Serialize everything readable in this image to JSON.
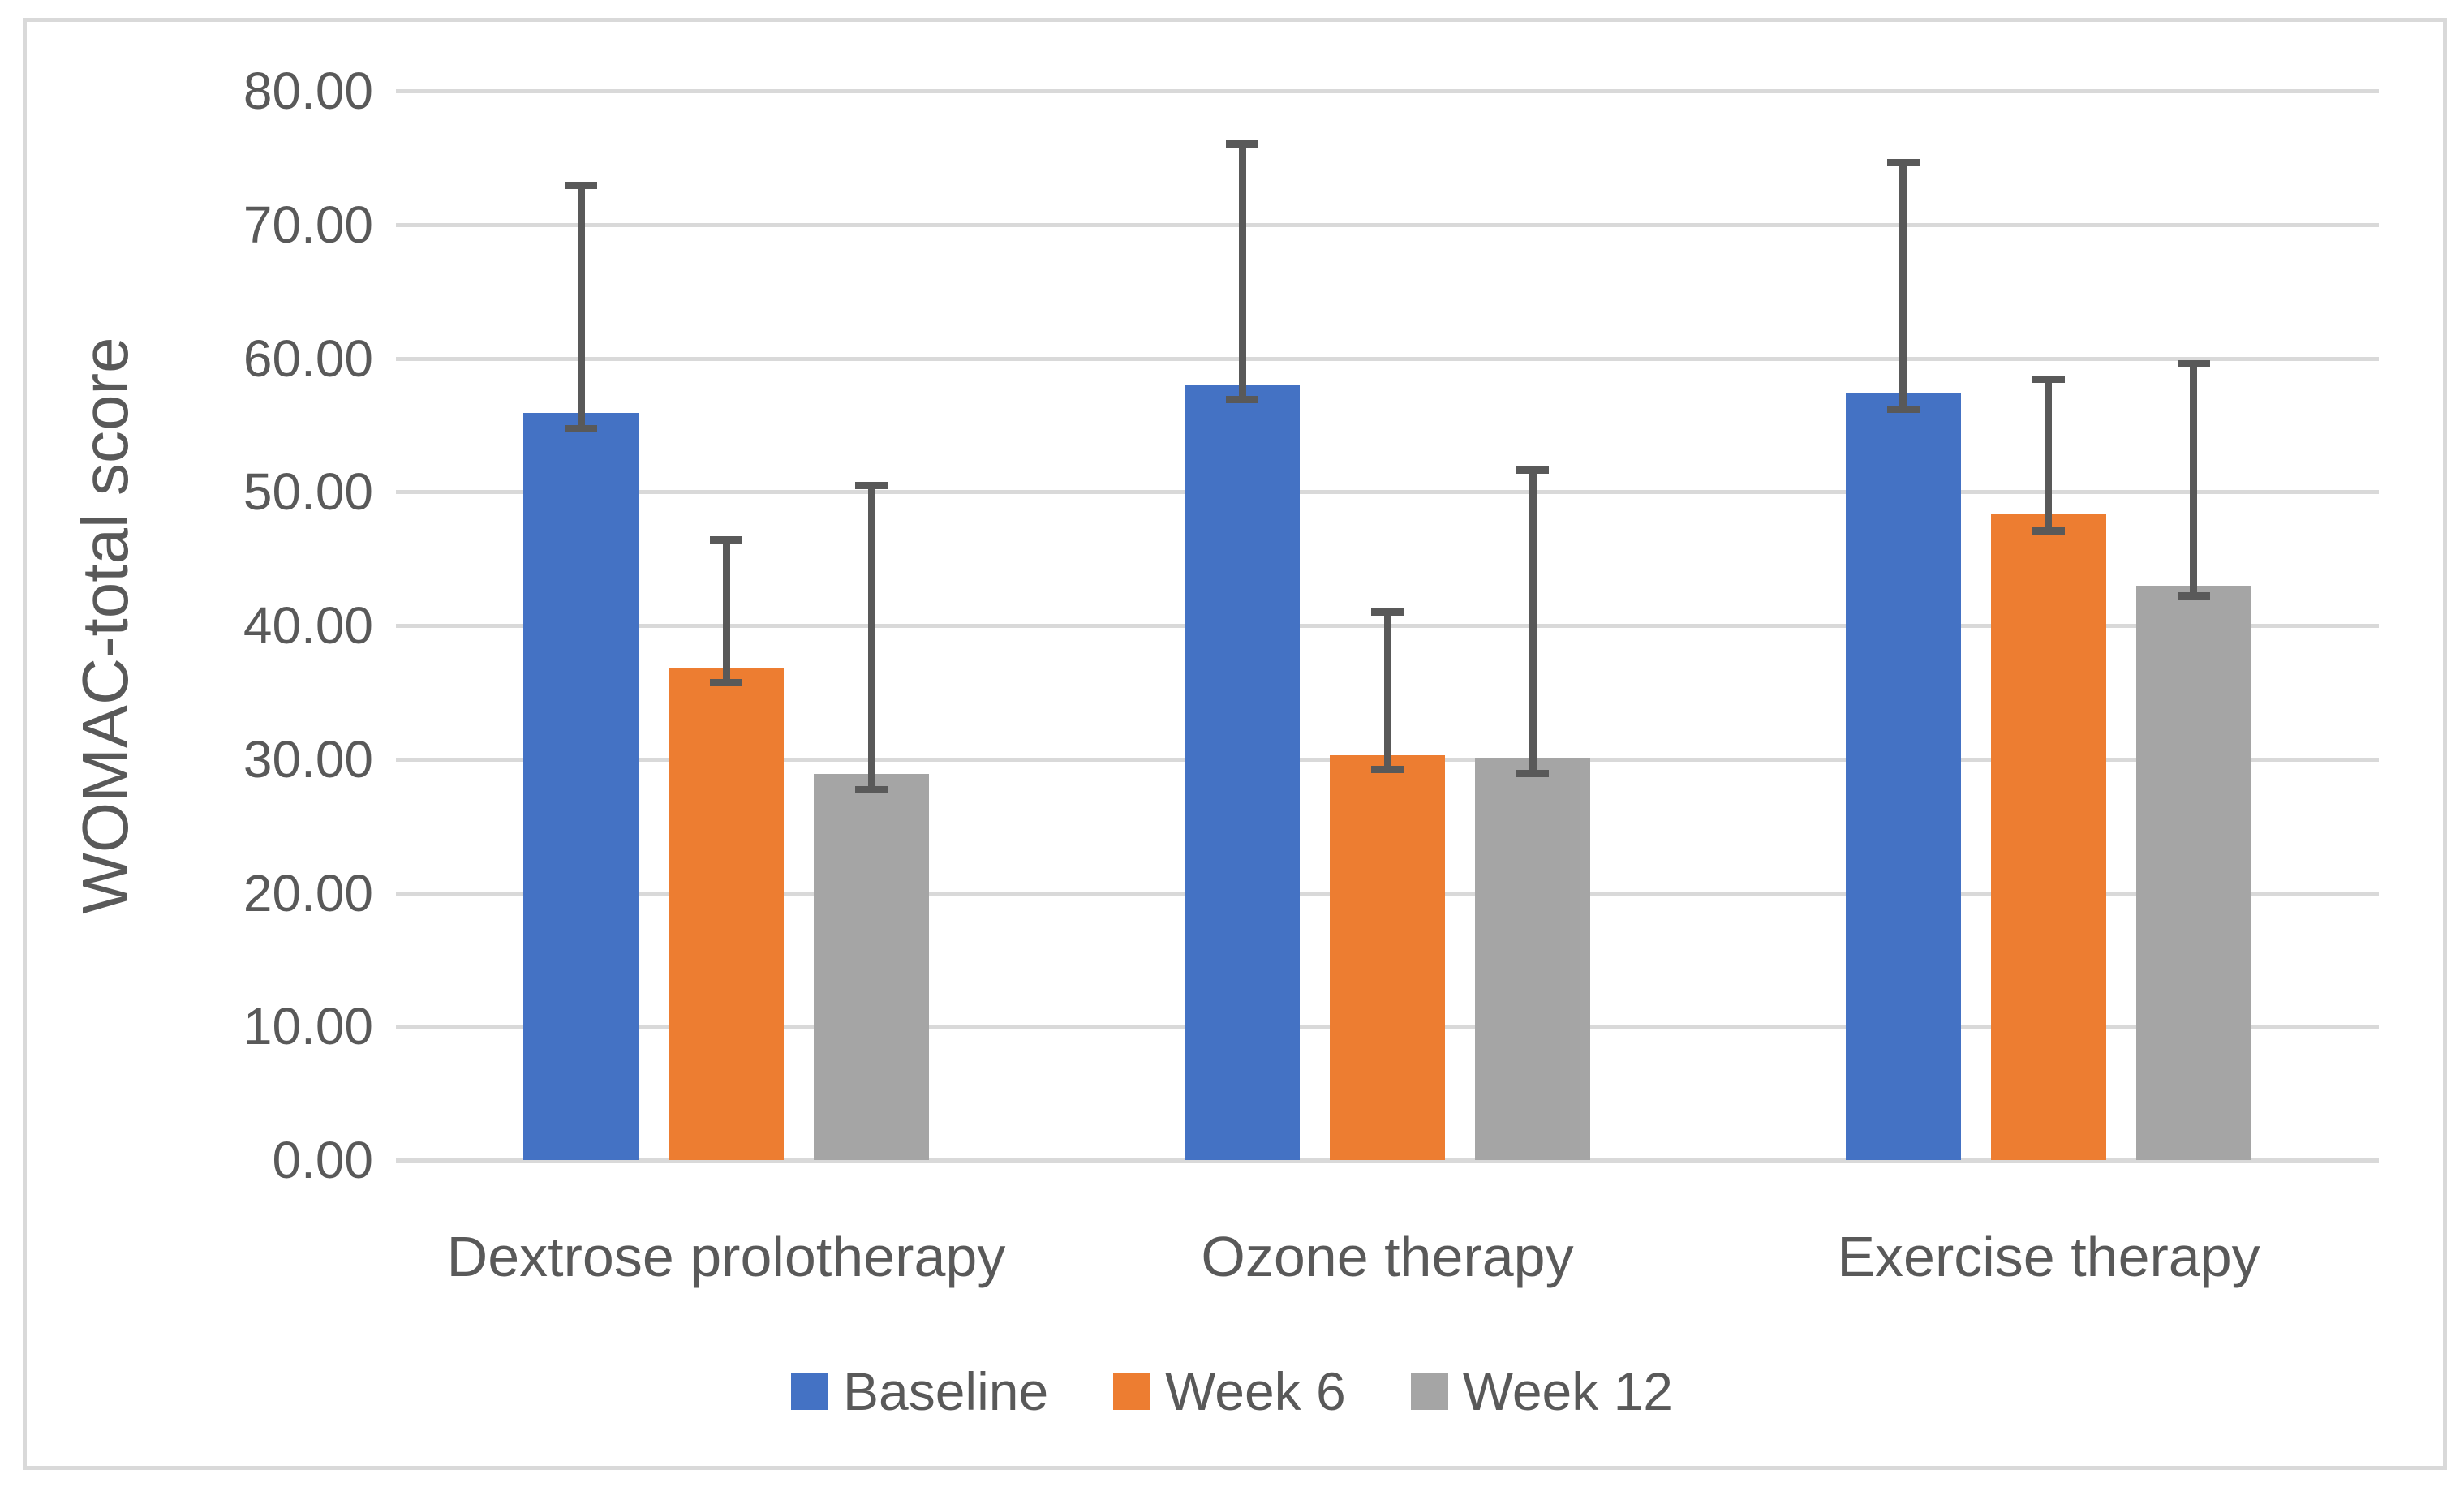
{
  "styles": {
    "axis_text_color": "#595959",
    "gridline_color": "#D9D9D9",
    "frame_color": "#D9D9D9",
    "error_bar_color": "#595959",
    "background": "#FFFFFF"
  },
  "chart_data": {
    "type": "bar",
    "title": "",
    "xlabel": "",
    "ylabel": "WOMAC-total score",
    "ylim": [
      0,
      80
    ],
    "ytick_step": 10,
    "ytick_decimals": 2,
    "ytick_labels": [
      "0.00",
      "10.00",
      "20.00",
      "30.00",
      "40.00",
      "50.00",
      "60.00",
      "70.00",
      "80.00"
    ],
    "grid": true,
    "legend_position": "bottom",
    "categories": [
      "Dextrose prolotherapy",
      "Ozone therapy",
      "Exercise therapy"
    ],
    "series": [
      {
        "name": "Baseline",
        "color": "#4472C4",
        "values": [
          55.9,
          58.0,
          57.4
        ],
        "error_low": [
          54.7,
          56.9,
          56.2
        ],
        "error_high": [
          72.9,
          76.0,
          74.6
        ]
      },
      {
        "name": "Week 6",
        "color": "#ED7D31",
        "values": [
          36.8,
          30.3,
          48.3
        ],
        "error_low": [
          35.7,
          29.2,
          47.1
        ],
        "error_high": [
          46.4,
          41.0,
          58.4
        ]
      },
      {
        "name": "Week 12",
        "color": "#A5A5A5",
        "values": [
          28.9,
          30.1,
          43.0
        ],
        "error_low": [
          27.7,
          28.9,
          42.2
        ],
        "error_high": [
          50.5,
          51.6,
          59.6
        ]
      }
    ]
  }
}
